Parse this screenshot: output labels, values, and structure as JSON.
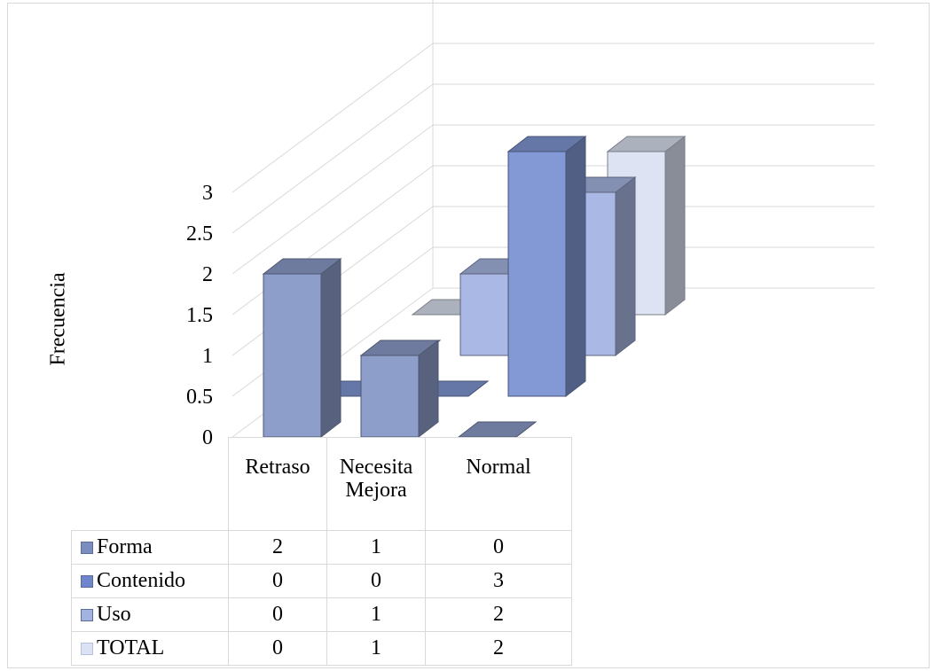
{
  "chart_data": {
    "type": "bar",
    "title": "",
    "ylabel": "Frecuencia",
    "xlabel": "",
    "categories": [
      "Retraso",
      "Necesita Mejora",
      "Normal"
    ],
    "category_labels": [
      "Retraso",
      "Necesita\nMejora",
      "Normal"
    ],
    "ylim": [
      0,
      3
    ],
    "yticks": [
      "0",
      "0.5",
      "1",
      "1.5",
      "2",
      "2.5",
      "3"
    ],
    "series": [
      {
        "name": "Forma",
        "values": [
          2,
          1,
          0
        ],
        "color": "#8e9ecb"
      },
      {
        "name": "Contenido",
        "values": [
          0,
          0,
          3
        ],
        "color": "#8299d6"
      },
      {
        "name": "Uso",
        "values": [
          0,
          1,
          2
        ],
        "color": "#a9b8e4"
      },
      {
        "name": "TOTAL",
        "values": [
          0,
          1,
          2
        ],
        "color": "#dde3f3"
      }
    ],
    "grid": true,
    "legend": "table",
    "style": "3d-column"
  }
}
